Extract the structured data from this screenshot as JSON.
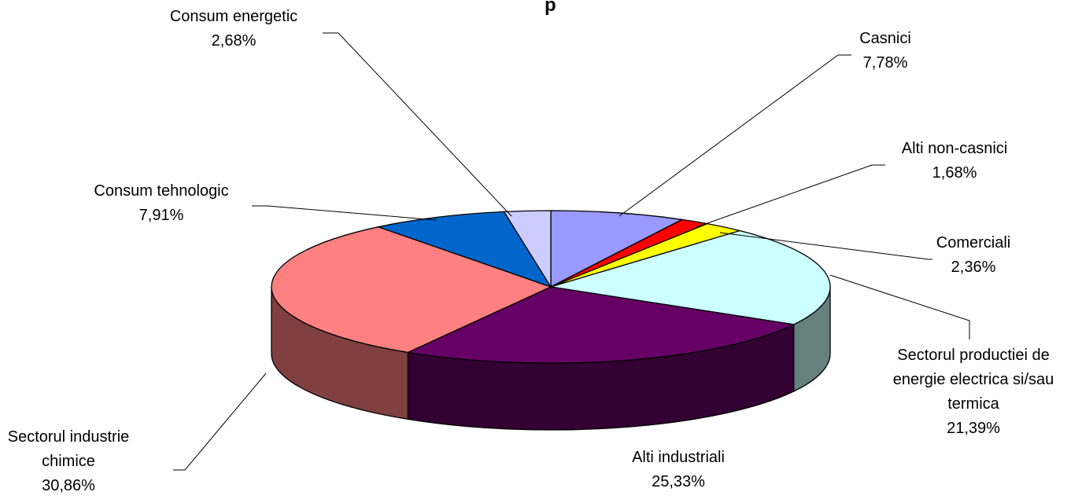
{
  "chart_data": {
    "type": "pie",
    "three_d": true,
    "title_fragment": "p",
    "start_angle_deg": -90,
    "direction": "clockwise",
    "slices": [
      {
        "name": "Casnici",
        "value_label": "7,78%",
        "value": 7.78,
        "color": "#9999ff",
        "side_color": "#5c5c99"
      },
      {
        "name": "Alti non-casnici",
        "value_label": "1,68%",
        "value": 1.68,
        "color": "#ff0000",
        "side_color": "#990000"
      },
      {
        "name": "Comerciali",
        "value_label": "2,36%",
        "value": 2.36,
        "color": "#ffff00",
        "side_color": "#999900"
      },
      {
        "name": "Sectorul productiei de energie electrica si/sau termica",
        "name_lines": [
          "Sectorul productiei de",
          "energie electrica si/sau",
          "termica"
        ],
        "value_label": "21,39%",
        "value": 21.39,
        "color": "#ccffff",
        "side_color": "#668080"
      },
      {
        "name": "Alti industriali",
        "value_label": "25,33%",
        "value": 25.33,
        "color": "#660066",
        "side_color": "#330033"
      },
      {
        "name": "Sectorul industrie chimice",
        "name_lines": [
          "Sectorul industrie",
          "chimice"
        ],
        "value_label": "30,86%",
        "value": 30.86,
        "color": "#ff8080",
        "side_color": "#804040"
      },
      {
        "name": "Consum tehnologic",
        "value_label": "7,91%",
        "value": 7.91,
        "color": "#0066cc",
        "side_color": "#003366"
      },
      {
        "name": "Consum energetic",
        "value_label": "2,68%",
        "value": 2.68,
        "color": "#ccccff",
        "side_color": "#666680"
      }
    ]
  }
}
